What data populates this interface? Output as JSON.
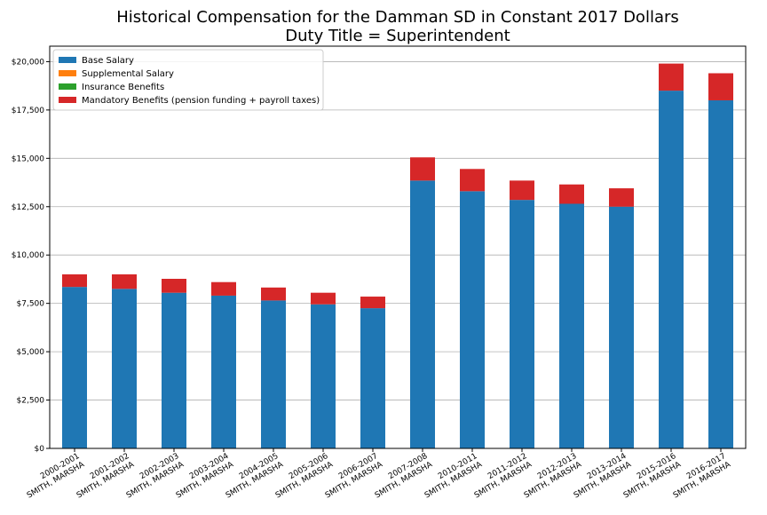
{
  "colors": {
    "base": "#1f77b4",
    "supplemental": "#ff7f0e",
    "insurance": "#2ca02c",
    "mandatory": "#d62728"
  },
  "chart_data": {
    "type": "bar",
    "stacked": true,
    "title": "Historical Compensation for the Damman SD in Constant 2017 Dollars",
    "subtitle": "Duty Title = Superintendent",
    "xlabel": "",
    "ylabel": "",
    "ylim": [
      0,
      20800
    ],
    "grid": "y",
    "legend_placement": "top-left",
    "yticks": [
      {
        "value": 0,
        "label": "$0"
      },
      {
        "value": 2500,
        "label": "$2,500"
      },
      {
        "value": 5000,
        "label": "$5,000"
      },
      {
        "value": 7500,
        "label": "$7,500"
      },
      {
        "value": 10000,
        "label": "$10,000"
      },
      {
        "value": 12500,
        "label": "$12,500"
      },
      {
        "value": 15000,
        "label": "$15,000"
      },
      {
        "value": 17500,
        "label": "$17,500"
      },
      {
        "value": 20000,
        "label": "$20,000"
      }
    ],
    "categories": [
      {
        "year": "2000-2001",
        "name": "SMITH, MARSHA"
      },
      {
        "year": "2001-2002",
        "name": "SMITH, MARSHA"
      },
      {
        "year": "2002-2003",
        "name": "SMITH, MARSHA"
      },
      {
        "year": "2003-2004",
        "name": "SMITH, MARSHA"
      },
      {
        "year": "2004-2005",
        "name": "SMITH, MARSHA"
      },
      {
        "year": "2005-2006",
        "name": "SMITH, MARSHA"
      },
      {
        "year": "2006-2007",
        "name": "SMITH, MARSHA"
      },
      {
        "year": "2007-2008",
        "name": "SMITH, MARSHA"
      },
      {
        "year": "2010-2011",
        "name": "SMITH, MARSHA"
      },
      {
        "year": "2011-2012",
        "name": "SMITH, MARSHA"
      },
      {
        "year": "2012-2013",
        "name": "SMITH, MARSHA"
      },
      {
        "year": "2013-2014",
        "name": "SMITH, MARSHA"
      },
      {
        "year": "2015-2016",
        "name": "SMITH, MARSHA"
      },
      {
        "year": "2016-2017",
        "name": "SMITH, MARSHA"
      }
    ],
    "series": [
      {
        "name": "Base Salary",
        "color_key": "base",
        "values": [
          8350,
          8250,
          8050,
          7900,
          7650,
          7450,
          7250,
          13850,
          13300,
          12850,
          12650,
          12500,
          18500,
          18000
        ]
      },
      {
        "name": "Supplemental Salary",
        "color_key": "supplemental",
        "values": [
          0,
          0,
          0,
          0,
          0,
          0,
          0,
          0,
          0,
          0,
          0,
          0,
          0,
          0
        ]
      },
      {
        "name": "Insurance Benefits",
        "color_key": "insurance",
        "values": [
          0,
          0,
          0,
          0,
          0,
          0,
          0,
          0,
          0,
          0,
          0,
          0,
          0,
          0
        ]
      },
      {
        "name": "Mandatory Benefits (pension funding + payroll taxes)",
        "color_key": "mandatory",
        "values": [
          650,
          750,
          720,
          700,
          670,
          600,
          600,
          1200,
          1150,
          1000,
          1000,
          950,
          1400,
          1400
        ]
      }
    ]
  }
}
